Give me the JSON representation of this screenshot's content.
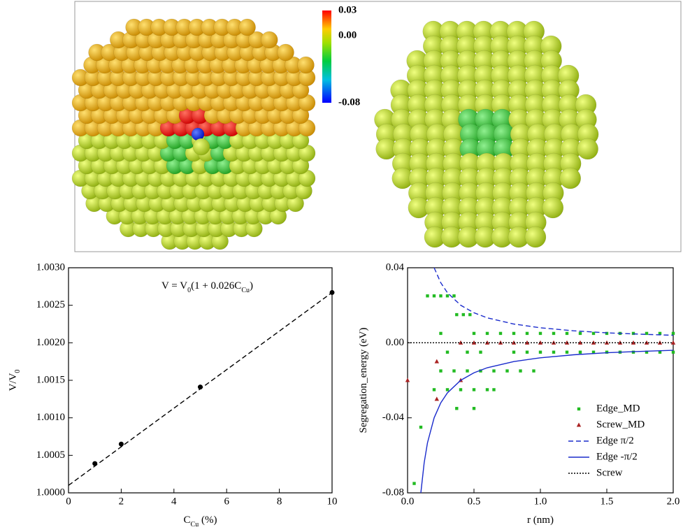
{
  "colorbar": {
    "lim": [
      -0.08,
      0.03
    ],
    "ticks": [
      {
        "value": 0.03,
        "label": "0.03"
      },
      {
        "value": 0,
        "label": "0.00"
      },
      {
        "value": -0.08,
        "label": "-0.08"
      }
    ]
  },
  "chart_data": [
    {
      "type": "scatter",
      "annotation": [
        "V = V",
        "0",
        "(1 + 0.026C",
        "Cu",
        ")"
      ],
      "xlabel": [
        "C",
        "Cu",
        " (%)"
      ],
      "ylabel": [
        "V/V",
        "0"
      ],
      "xlim": [
        0,
        10
      ],
      "xticks": [
        0,
        2,
        4,
        6,
        8,
        10
      ],
      "ylim": [
        1.0,
        1.003
      ],
      "yticks": [
        {
          "value": 1.0,
          "label": "1.0000"
        },
        {
          "value": 1.0005,
          "label": "1.0005"
        },
        {
          "value": 1.001,
          "label": "1.0010"
        },
        {
          "value": 1.0015,
          "label": "1.0015"
        },
        {
          "value": 1.002,
          "label": "1.0020"
        },
        {
          "value": 1.0025,
          "label": "1.0025"
        },
        {
          "value": 1.003,
          "label": "1.0030"
        }
      ],
      "series": [
        {
          "marker": "circle",
          "color": "#000000",
          "x": [
            1,
            2,
            5,
            10
          ],
          "values": [
            1.00039,
            1.00065,
            1.00141,
            1.00267
          ]
        },
        {
          "linestyle": "dashed",
          "color": "#000000",
          "x": [
            0,
            10
          ],
          "values": [
            1.0001,
            1.00267
          ]
        }
      ]
    },
    {
      "type": "scatter",
      "xlabel": [
        "r (nm)"
      ],
      "ylabel": [
        "Segregation_energy (eV)"
      ],
      "xlim": [
        0,
        2
      ],
      "xticks": [
        {
          "value": 0,
          "label": "0.0"
        },
        {
          "value": 0.5,
          "label": "0.5"
        },
        {
          "value": 1,
          "label": "1.0"
        },
        {
          "value": 1.5,
          "label": "1.5"
        },
        {
          "value": 2,
          "label": "2.0"
        }
      ],
      "ylim": [
        -0.08,
        0.04
      ],
      "yticks": [
        {
          "value": -0.08,
          "label": "-0.08"
        },
        {
          "value": -0.04,
          "label": "-0.04"
        },
        {
          "value": 0,
          "label": "0.00"
        },
        {
          "value": 0.04,
          "label": "0.04"
        }
      ],
      "legend": "lower right",
      "series": [
        {
          "name": "Edge_MD",
          "marker": "square",
          "color": "#22bb22",
          "x": [
            0.15,
            0.2,
            0.25,
            0.3,
            0.35,
            0.37,
            0.42,
            0.47,
            0.25,
            0.5,
            0.6,
            0.7,
            0.8,
            0.9,
            1.0,
            1.1,
            1.2,
            1.3,
            1.4,
            1.5,
            1.6,
            1.7,
            1.8,
            1.9,
            2.0,
            0.3,
            0.45,
            0.55,
            0.8,
            0.9,
            1.0,
            1.1,
            1.2,
            1.3,
            1.4,
            1.5,
            1.6,
            1.7,
            1.8,
            1.9,
            2.0,
            0.25,
            0.35,
            0.45,
            0.55,
            0.65,
            0.75,
            0.85,
            0.95,
            0.2,
            0.3,
            0.4,
            0.5,
            0.6,
            0.65,
            0.37,
            0.5,
            0.1,
            0.05
          ],
          "values": [
            0.025,
            0.025,
            0.025,
            0.025,
            0.025,
            0.015,
            0.015,
            0.015,
            0.005,
            0.005,
            0.005,
            0.005,
            0.005,
            0.005,
            0.005,
            0.005,
            0.005,
            0.005,
            0.005,
            0.005,
            0.005,
            0.005,
            0.005,
            0.005,
            0.005,
            -0.005,
            -0.005,
            -0.005,
            -0.005,
            -0.005,
            -0.005,
            -0.005,
            -0.005,
            -0.005,
            -0.005,
            -0.005,
            -0.005,
            -0.005,
            -0.005,
            -0.005,
            -0.005,
            -0.015,
            -0.015,
            -0.015,
            -0.015,
            -0.015,
            -0.015,
            -0.015,
            -0.015,
            -0.025,
            -0.025,
            -0.025,
            -0.025,
            -0.025,
            -0.025,
            -0.035,
            -0.035,
            -0.045,
            -0.075
          ]
        },
        {
          "name": "Screw_MD",
          "marker": "triangle",
          "color": "#aa2222",
          "x": [
            0.0,
            0.22,
            0.22,
            0.4,
            0.4,
            0.5,
            0.6,
            0.7,
            0.8,
            0.9,
            1.0,
            1.1,
            1.2,
            1.3,
            1.4,
            1.5,
            1.6,
            1.7,
            1.8,
            1.9,
            2.0
          ],
          "values": [
            -0.02,
            -0.01,
            -0.03,
            -0.02,
            0,
            0,
            0,
            0,
            0,
            0,
            0,
            0,
            0,
            0,
            0,
            0,
            0,
            0,
            0,
            0,
            0
          ]
        },
        {
          "name": "Edge π/2",
          "linestyle": "dashed",
          "color": "#1a2bcc",
          "x": [
            0.2,
            0.25,
            0.3,
            0.4,
            0.5,
            0.6,
            0.8,
            1.0,
            1.25,
            1.5,
            1.75,
            2.0
          ],
          "values": [
            0.04,
            0.032,
            0.0267,
            0.02,
            0.016,
            0.0133,
            0.01,
            0.008,
            0.0064,
            0.0053,
            0.0046,
            0.004
          ]
        },
        {
          "name": "Edge -π/2",
          "linestyle": "solid",
          "color": "#1a2bcc",
          "x": [
            0.1,
            0.125,
            0.15,
            0.2,
            0.25,
            0.3,
            0.4,
            0.5,
            0.6,
            0.8,
            1.0,
            1.25,
            1.5,
            1.75,
            2.0
          ],
          "values": [
            -0.08,
            -0.064,
            -0.0533,
            -0.04,
            -0.032,
            -0.0267,
            -0.02,
            -0.016,
            -0.0133,
            -0.01,
            -0.008,
            -0.0064,
            -0.0053,
            -0.0046,
            -0.004
          ]
        },
        {
          "name": "Screw",
          "linestyle": "dotted",
          "color": "#000000",
          "x": [
            0,
            2
          ],
          "values": [
            0,
            0
          ]
        }
      ]
    }
  ]
}
